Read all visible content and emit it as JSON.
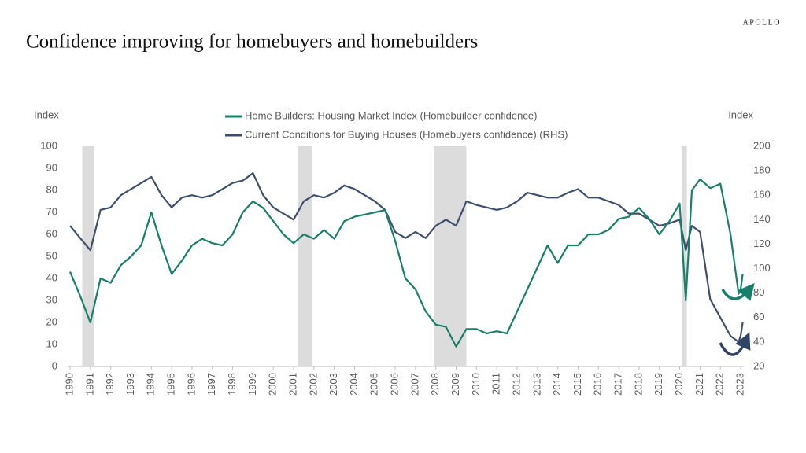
{
  "brand": "APOLLO",
  "chart_data": {
    "type": "line",
    "title": "Confidence improving for homebuyers and homebuilders",
    "ylabel": "Index",
    "y2label": "Index",
    "x": [
      1990,
      1990.5,
      1991,
      1991.5,
      1992,
      1992.5,
      1993,
      1993.5,
      1994,
      1994.5,
      1995,
      1995.5,
      1996,
      1996.5,
      1997,
      1997.5,
      1998,
      1998.5,
      1999,
      1999.5,
      2000,
      2000.5,
      2001,
      2001.5,
      2002,
      2002.5,
      2003,
      2003.5,
      2004,
      2004.5,
      2005,
      2005.5,
      2006,
      2006.5,
      2007,
      2007.5,
      2008,
      2008.5,
      2009,
      2009.5,
      2010,
      2010.5,
      2011,
      2011.5,
      2012,
      2012.5,
      2013,
      2013.5,
      2014,
      2014.5,
      2015,
      2015.5,
      2016,
      2016.5,
      2017,
      2017.5,
      2018,
      2018.5,
      2019,
      2019.5,
      2020,
      2020.3,
      2020.6,
      2021,
      2021.5,
      2022,
      2022.5,
      2022.9,
      2023,
      2023.1
    ],
    "series": [
      {
        "name": "Home Builders: Housing Market Index  (Homebuilder confidence)",
        "color": "#17806a",
        "axis": "y",
        "values": [
          43,
          32,
          20,
          40,
          38,
          46,
          50,
          55,
          70,
          55,
          42,
          48,
          55,
          58,
          56,
          55,
          60,
          70,
          75,
          72,
          66,
          60,
          56,
          60,
          58,
          62,
          58,
          66,
          68,
          69,
          70,
          71,
          57,
          40,
          35,
          25,
          19,
          18,
          9,
          17,
          17,
          15,
          16,
          15,
          25,
          35,
          45,
          55,
          47,
          55,
          55,
          60,
          60,
          62,
          67,
          68,
          72,
          67,
          60,
          66,
          74,
          30,
          80,
          85,
          81,
          83,
          60,
          33,
          35,
          42
        ]
      },
      {
        "name": "Current Conditions for Buying Houses (Homebuyers confidence) (RHS)",
        "color": "#3d4f6e",
        "axis": "y2",
        "values": [
          135,
          125,
          115,
          148,
          150,
          160,
          165,
          170,
          175,
          160,
          150,
          158,
          160,
          158,
          160,
          165,
          170,
          172,
          178,
          160,
          150,
          145,
          140,
          155,
          160,
          158,
          162,
          168,
          165,
          160,
          155,
          148,
          130,
          125,
          130,
          125,
          135,
          140,
          135,
          155,
          152,
          150,
          148,
          150,
          155,
          162,
          160,
          158,
          158,
          162,
          165,
          158,
          158,
          155,
          152,
          145,
          145,
          140,
          135,
          137,
          140,
          115,
          135,
          130,
          75,
          60,
          45,
          40,
          45,
          56
        ]
      }
    ],
    "recessions": [
      [
        1990.6,
        1991.2
      ],
      [
        2001.2,
        2001.9
      ],
      [
        2007.9,
        2009.5
      ],
      [
        2020.1,
        2020.35
      ]
    ],
    "xlim": [
      1990,
      2023
    ],
    "xticks": [
      1990,
      1991,
      1992,
      1993,
      1994,
      1995,
      1996,
      1997,
      1998,
      1999,
      2000,
      2001,
      2002,
      2003,
      2004,
      2005,
      2006,
      2007,
      2008,
      2009,
      2010,
      2011,
      2012,
      2013,
      2014,
      2015,
      2016,
      2017,
      2018,
      2019,
      2020,
      2021,
      2022,
      2023
    ],
    "ylim": [
      0,
      100
    ],
    "yticks": [
      0,
      10,
      20,
      30,
      40,
      50,
      60,
      70,
      80,
      90,
      100
    ],
    "y2lim": [
      20,
      200
    ],
    "y2ticks": [
      20,
      40,
      60,
      80,
      100,
      120,
      140,
      160,
      180,
      200
    ],
    "grid": false
  }
}
